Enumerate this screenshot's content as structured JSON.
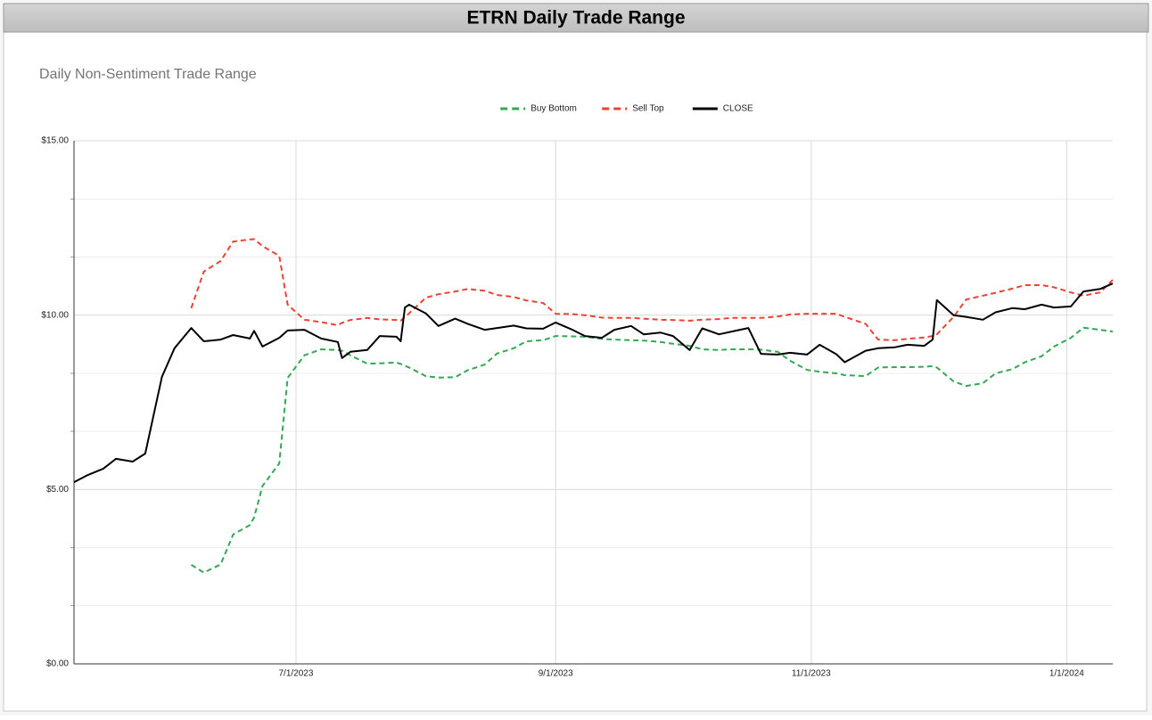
{
  "header": {
    "title": "ETRN Daily Trade Range"
  },
  "chart_data": {
    "type": "line",
    "title": "Daily Non-Sentiment Trade Range",
    "x": [
      "5/9/2023",
      "5/12/2023",
      "5/16/2023",
      "5/19/2023",
      "5/23/2023",
      "5/26/2023",
      "5/30/2023",
      "6/2/2023",
      "6/6/2023",
      "6/9/2023",
      "6/13/2023",
      "6/16/2023",
      "6/20/2023",
      "6/21/2023",
      "6/23/2023",
      "6/27/2023",
      "6/29/2023",
      "7/3/2023",
      "7/7/2023",
      "7/11/2023",
      "7/12/2023",
      "7/14/2023",
      "7/18/2023",
      "7/21/2023",
      "7/25/2023",
      "7/26/2023",
      "7/27/2023",
      "7/28/2023",
      "8/1/2023",
      "8/4/2023",
      "8/8/2023",
      "8/11/2023",
      "8/15/2023",
      "8/18/2023",
      "8/22/2023",
      "8/25/2023",
      "8/29/2023",
      "9/1/2023",
      "9/5/2023",
      "9/8/2023",
      "9/12/2023",
      "9/15/2023",
      "9/19/2023",
      "9/22/2023",
      "9/26/2023",
      "9/29/2023",
      "10/3/2023",
      "10/6/2023",
      "10/10/2023",
      "10/13/2023",
      "10/17/2023",
      "10/20/2023",
      "10/24/2023",
      "10/27/2023",
      "10/31/2023",
      "11/3/2023",
      "11/7/2023",
      "11/9/2023",
      "11/14/2023",
      "11/17/2023",
      "11/21/2023",
      "11/24/2023",
      "11/28/2023",
      "11/30/2023",
      "12/1/2023",
      "12/5/2023",
      "12/8/2023",
      "12/12/2023",
      "12/15/2023",
      "12/19/2023",
      "12/22/2023",
      "12/26/2023",
      "12/29/2023",
      "1/2/2024",
      "1/5/2024",
      "1/9/2024",
      "1/12/2024"
    ],
    "series": [
      {
        "name": "Buy Bottom",
        "color": "#34a853",
        "dash": "dashed",
        "values": [
          null,
          null,
          null,
          null,
          null,
          null,
          null,
          null,
          2.84,
          2.62,
          2.85,
          3.71,
          3.98,
          4.2,
          5.1,
          5.75,
          8.2,
          8.85,
          9.02,
          9.0,
          8.98,
          8.85,
          8.61,
          8.62,
          8.64,
          8.6,
          8.55,
          8.5,
          8.25,
          8.21,
          8.22,
          8.42,
          8.58,
          8.9,
          9.05,
          9.25,
          9.28,
          9.4,
          9.39,
          9.38,
          9.32,
          9.3,
          9.28,
          9.27,
          9.23,
          9.18,
          9.12,
          9.02,
          9.0,
          9.02,
          9.02,
          9.01,
          8.95,
          8.69,
          8.43,
          8.38,
          8.33,
          8.28,
          8.25,
          8.5,
          8.51,
          8.51,
          8.52,
          8.54,
          8.5,
          8.1,
          7.97,
          8.05,
          8.33,
          8.45,
          8.65,
          8.82,
          9.1,
          9.35,
          9.64,
          9.58,
          9.53
        ]
      },
      {
        "name": "Sell Top",
        "color": "#ea4335",
        "dash": "dashed",
        "values": [
          null,
          null,
          null,
          null,
          null,
          null,
          null,
          null,
          10.2,
          11.25,
          11.55,
          12.11,
          12.17,
          12.18,
          11.98,
          11.7,
          10.3,
          9.87,
          9.8,
          9.71,
          9.78,
          9.86,
          9.92,
          9.88,
          9.86,
          9.84,
          9.95,
          10.05,
          10.5,
          10.6,
          10.68,
          10.75,
          10.7,
          10.58,
          10.52,
          10.42,
          10.35,
          10.04,
          10.03,
          10.0,
          9.93,
          9.92,
          9.92,
          9.9,
          9.87,
          9.86,
          9.84,
          9.87,
          9.89,
          9.92,
          9.92,
          9.92,
          9.96,
          10.02,
          10.04,
          10.04,
          10.04,
          9.95,
          9.75,
          9.3,
          9.28,
          9.32,
          9.36,
          9.4,
          9.45,
          9.95,
          10.45,
          10.56,
          10.64,
          10.76,
          10.86,
          10.86,
          10.8,
          10.65,
          10.56,
          10.65,
          11.01
        ]
      },
      {
        "name": "CLOSE",
        "color": "#000000",
        "dash": "solid",
        "values": [
          5.21,
          5.4,
          5.6,
          5.88,
          5.8,
          6.03,
          8.23,
          9.05,
          9.63,
          9.25,
          9.3,
          9.43,
          9.33,
          9.55,
          9.1,
          9.35,
          9.56,
          9.58,
          9.33,
          9.23,
          8.77,
          8.95,
          9.0,
          9.4,
          9.38,
          9.25,
          10.22,
          10.3,
          10.05,
          9.69,
          9.9,
          9.75,
          9.58,
          9.63,
          9.7,
          9.62,
          9.61,
          9.79,
          9.58,
          9.4,
          9.35,
          9.58,
          9.69,
          9.45,
          9.5,
          9.4,
          9.0,
          9.62,
          9.45,
          9.53,
          9.63,
          8.89,
          8.87,
          8.92,
          8.87,
          9.15,
          8.88,
          8.65,
          8.98,
          9.05,
          9.08,
          9.15,
          9.12,
          9.3,
          10.43,
          10.0,
          9.95,
          9.87,
          10.08,
          10.2,
          10.17,
          10.3,
          10.22,
          10.25,
          10.68,
          10.75,
          10.91
        ]
      }
    ],
    "xlim": [
      "5/9/2023",
      "1/12/2024"
    ],
    "xticks": [
      "7/1/2023",
      "9/1/2023",
      "11/1/2023",
      "1/1/2024"
    ],
    "ylim": [
      0,
      15
    ],
    "yticks": [
      {
        "value": 0,
        "label": "$0.00"
      },
      {
        "value": 5,
        "label": "$5.00"
      },
      {
        "value": 10,
        "label": "$10.00"
      },
      {
        "value": 15,
        "label": "$15.00"
      }
    ],
    "y_minor_ticks": [
      1.67,
      3.33,
      6.67,
      8.33,
      11.67,
      13.33
    ],
    "grid": true,
    "legend": "top"
  }
}
